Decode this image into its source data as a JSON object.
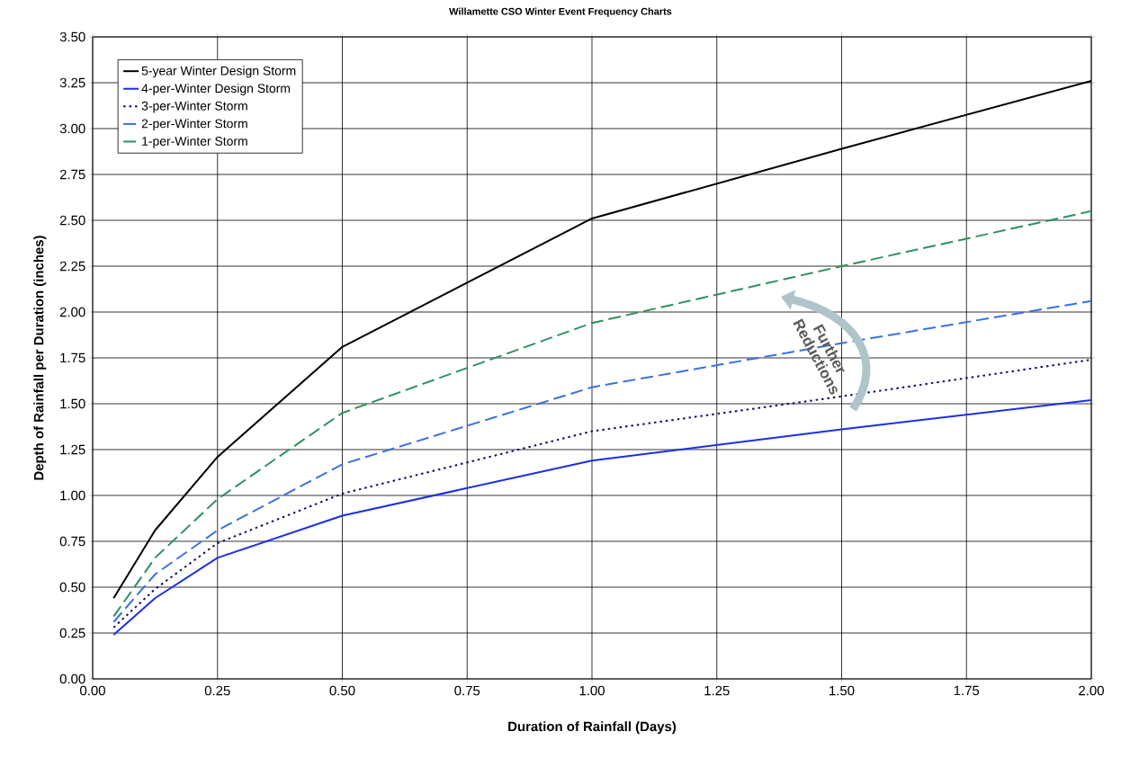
{
  "chart_data": {
    "type": "line",
    "title": "Willamette CSO Winter Event Frequency Charts",
    "xlabel": "Duration of Rainfall (Days)",
    "ylabel": "Depth of Rainfall per Duration (inches)",
    "x": [
      0.042,
      0.125,
      0.25,
      0.5,
      1.0,
      1.5,
      2.0
    ],
    "series": [
      {
        "name": "5-year Winter Design Storm",
        "color": "#000000",
        "line_style": "solid",
        "values": [
          0.44,
          0.81,
          1.21,
          1.81,
          2.51,
          2.89,
          3.26
        ]
      },
      {
        "name": "4-per-Winter Design Storm",
        "color": "#1a2ee6",
        "line_style": "solid",
        "values": [
          0.24,
          0.44,
          0.66,
          0.89,
          1.19,
          1.36,
          1.52
        ]
      },
      {
        "name": "3-per-Winter Storm",
        "color": "#0c0c6e",
        "line_style": "dotted",
        "values": [
          0.28,
          0.49,
          0.74,
          1.01,
          1.35,
          1.54,
          1.74
        ]
      },
      {
        "name": "2-per-Winter Storm",
        "color": "#3a70e0",
        "line_style": "dashed",
        "values": [
          0.31,
          0.57,
          0.81,
          1.17,
          1.59,
          1.83,
          2.06
        ]
      },
      {
        "name": "1-per-Winter Storm",
        "color": "#2e9060",
        "line_style": "dashed",
        "values": [
          0.34,
          0.66,
          0.98,
          1.45,
          1.94,
          2.25,
          2.55
        ]
      }
    ],
    "annotations": [
      "Further Reductions"
    ],
    "xlim": [
      0,
      2
    ],
    "ylim": [
      0,
      3.5
    ],
    "xticks": [
      {
        "value": 0,
        "label": "0.00"
      },
      {
        "value": 0.25,
        "label": "0.25"
      },
      {
        "value": 0.5,
        "label": "0.50"
      },
      {
        "value": 0.75,
        "label": "0.75"
      },
      {
        "value": 1,
        "label": "1.00"
      },
      {
        "value": 1.25,
        "label": "1.25"
      },
      {
        "value": 1.5,
        "label": "1.50"
      },
      {
        "value": 1.75,
        "label": "1.75"
      },
      {
        "value": 2,
        "label": "2.00"
      }
    ],
    "yticks": [
      {
        "value": 0,
        "label": "0.00"
      },
      {
        "value": 0.25,
        "label": "0.25"
      },
      {
        "value": 0.5,
        "label": "0.50"
      },
      {
        "value": 0.75,
        "label": "0.75"
      },
      {
        "value": 1,
        "label": "1.00"
      },
      {
        "value": 1.25,
        "label": "1.25"
      },
      {
        "value": 1.5,
        "label": "1.50"
      },
      {
        "value": 1.75,
        "label": "1.75"
      },
      {
        "value": 2,
        "label": "2.00"
      },
      {
        "value": 2.25,
        "label": "2.25"
      },
      {
        "value": 2.5,
        "label": "2.50"
      },
      {
        "value": 2.75,
        "label": "2.75"
      },
      {
        "value": 3,
        "label": "3.00"
      },
      {
        "value": 3.25,
        "label": "3.25"
      },
      {
        "value": 3.5,
        "label": "3.50"
      }
    ],
    "grid": true,
    "legend": "top left",
    "marker": "none"
  }
}
